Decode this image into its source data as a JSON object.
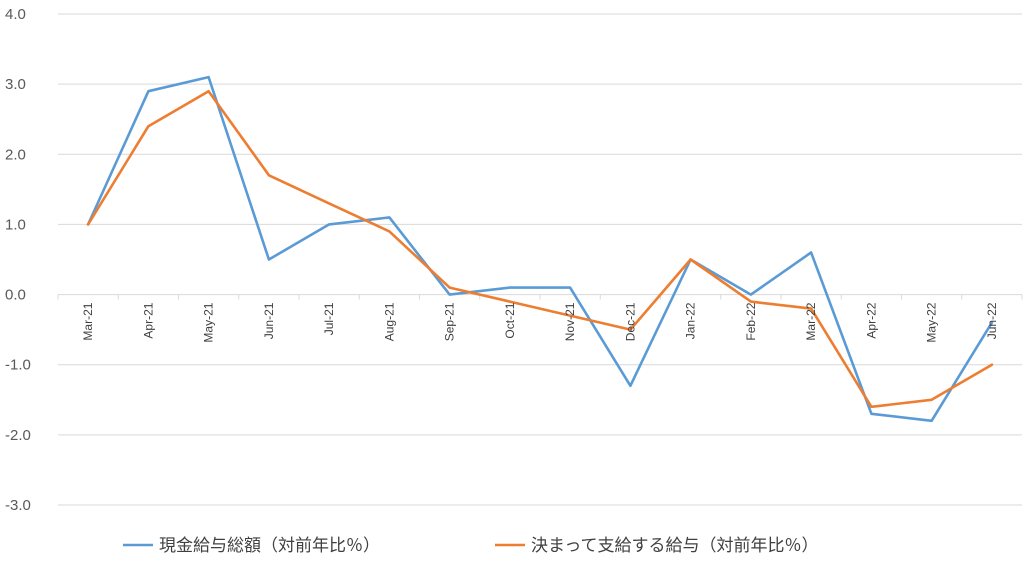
{
  "chart_data": {
    "type": "line",
    "title": "",
    "xlabel": "",
    "ylabel": "",
    "categories": [
      "Mar-21",
      "Apr-21",
      "May-21",
      "Jun-21",
      "Jul-21",
      "Aug-21",
      "Sep-21",
      "Oct-21",
      "Nov-21",
      "Dec-21",
      "Jan-22",
      "Feb-22",
      "Mar-22",
      "Apr-22",
      "May-22",
      "Jun-22"
    ],
    "ylim": [
      -3.0,
      4.0
    ],
    "yticks": [
      4.0,
      3.0,
      2.0,
      1.0,
      0.0,
      -1.0,
      -2.0,
      -3.0
    ],
    "ytick_labels": [
      "4.0",
      "3.0",
      "2.0",
      "1.0",
      "0.0",
      "-1.0",
      "-2.0",
      "-3.0"
    ],
    "grid": true,
    "legend_position": "bottom",
    "series": [
      {
        "name": "現金給与総額（対前年比％）",
        "color": "#5b9bd5",
        "values": [
          1.0,
          2.9,
          3.1,
          0.5,
          1.0,
          1.1,
          0.0,
          0.1,
          0.1,
          -1.3,
          0.5,
          0.0,
          0.6,
          -1.7,
          -1.8,
          -0.4
        ]
      },
      {
        "name": "決まって支給する給与（対前年比％）",
        "color": "#ed7d31",
        "values": [
          1.0,
          2.4,
          2.9,
          1.7,
          1.3,
          0.9,
          0.1,
          -0.1,
          -0.3,
          -0.5,
          0.5,
          -0.1,
          -0.2,
          -1.6,
          -1.5,
          -1.0
        ]
      }
    ]
  }
}
